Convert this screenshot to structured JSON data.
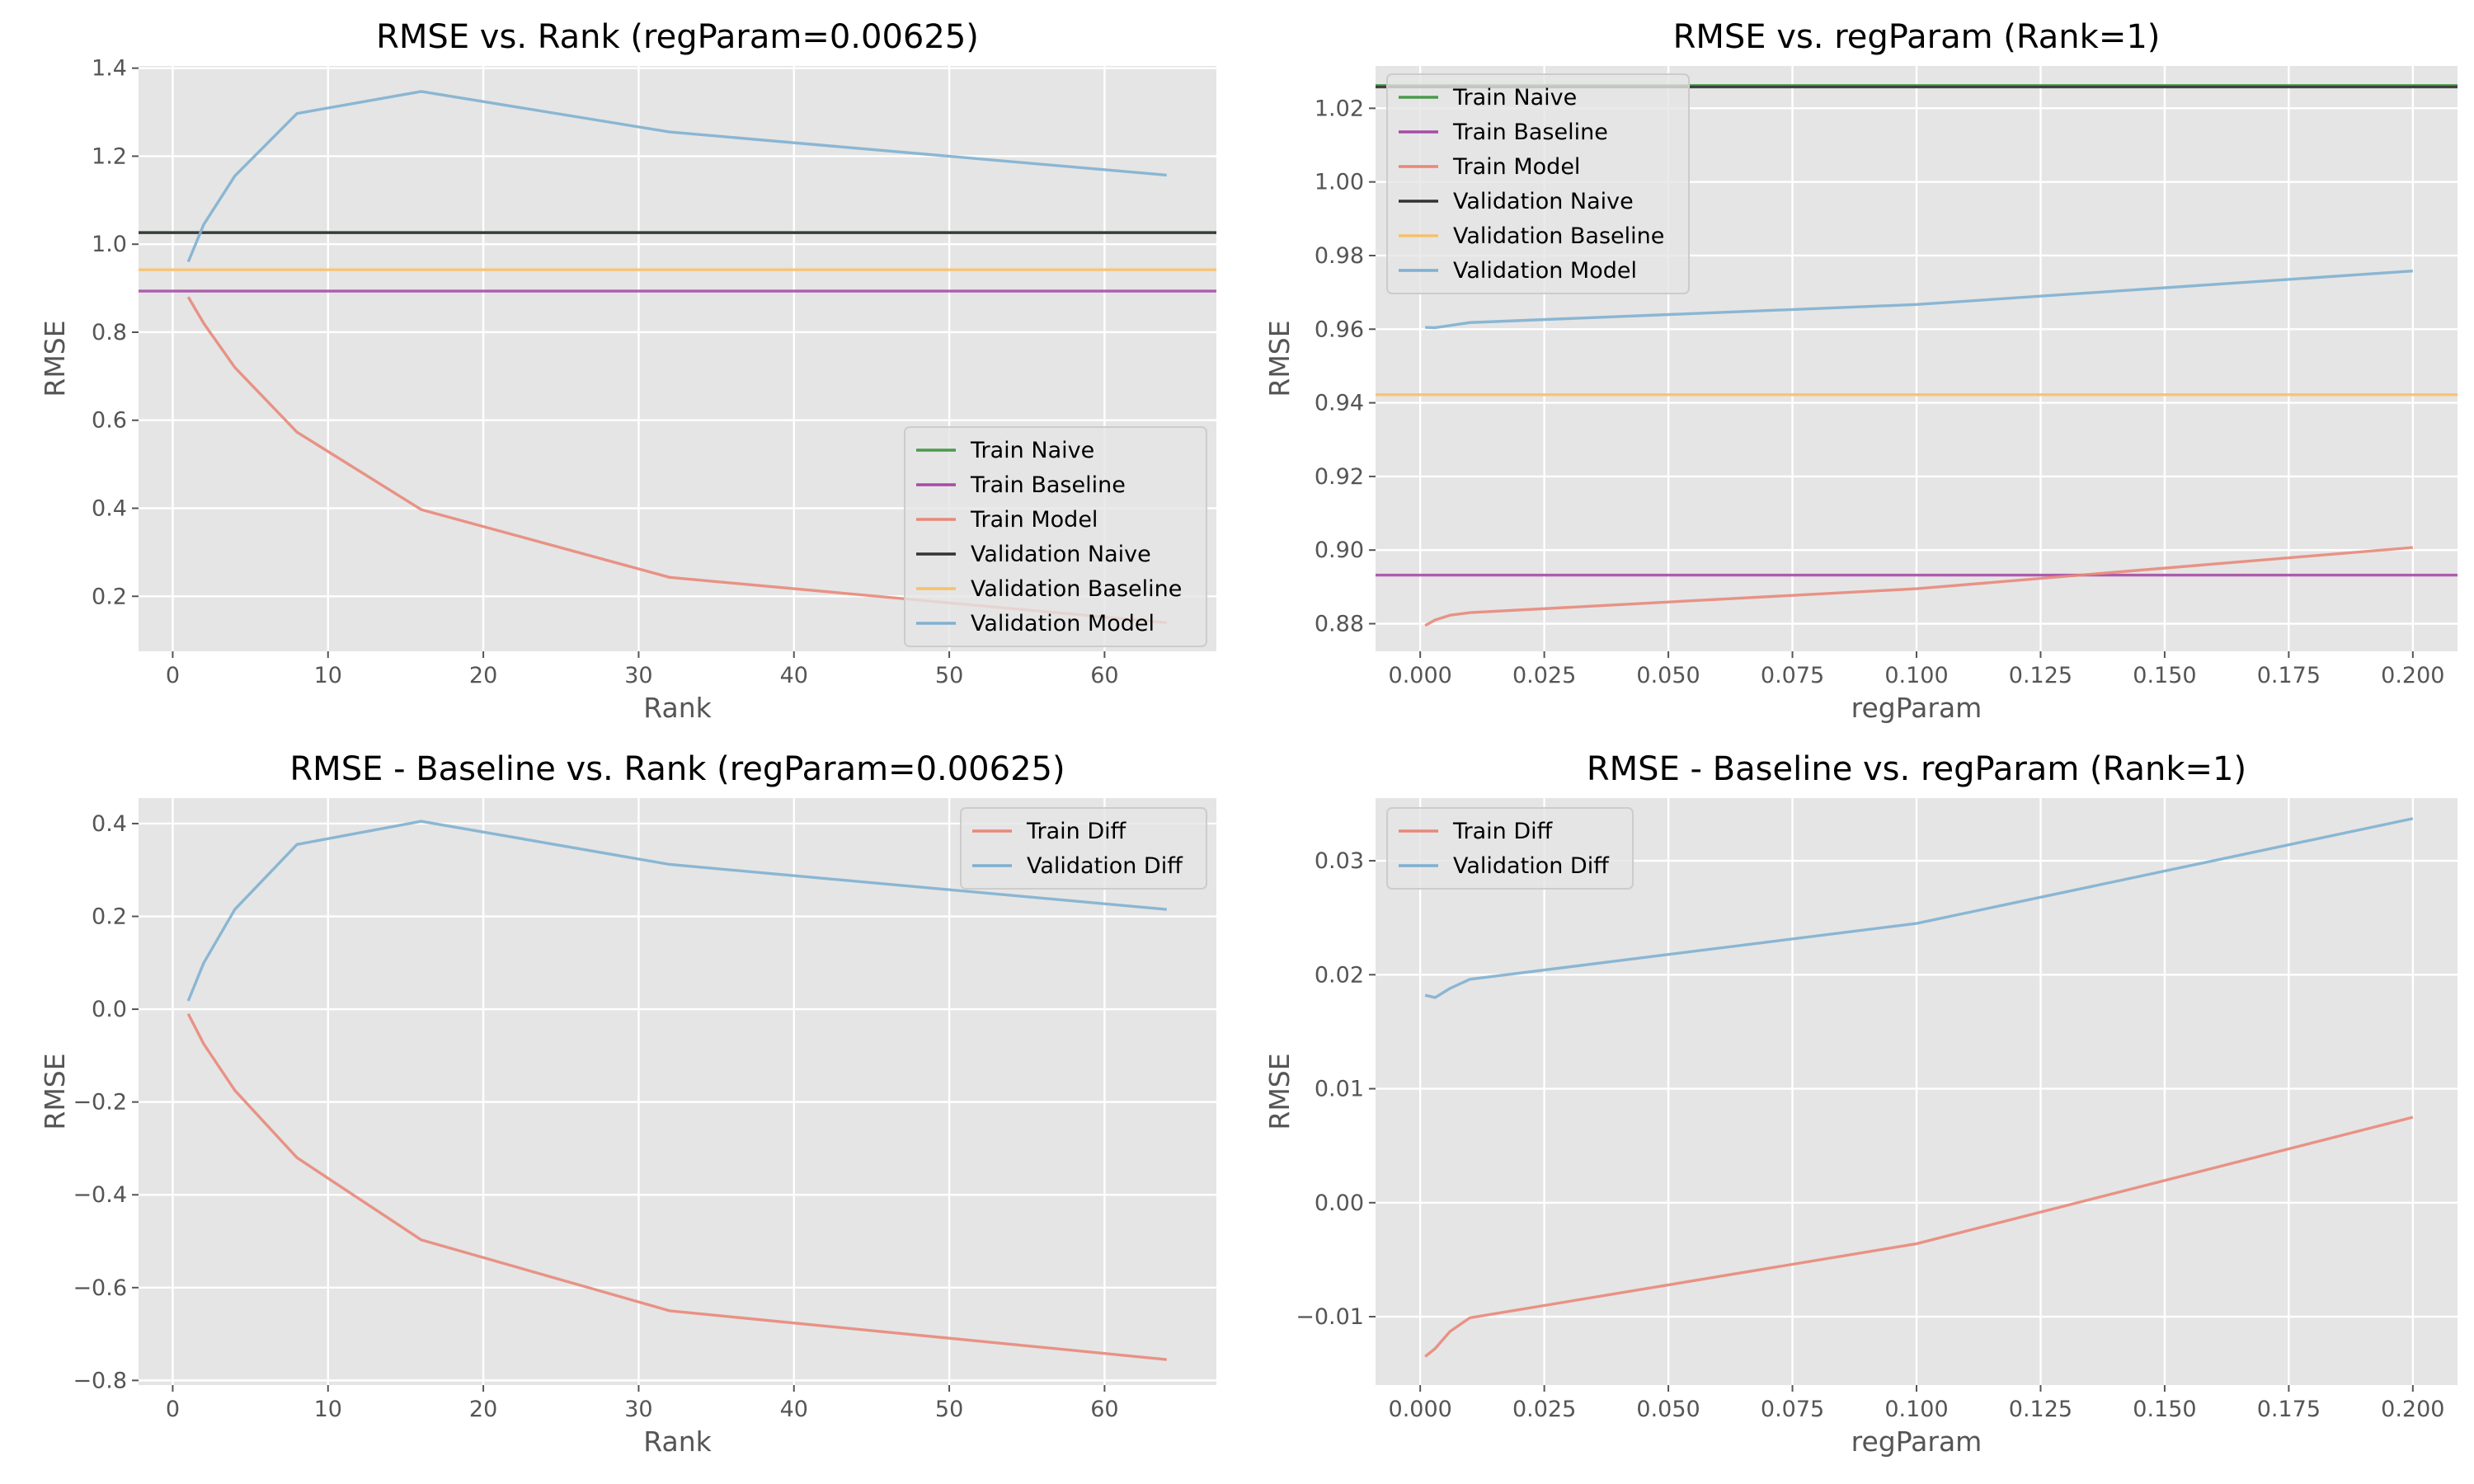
{
  "chart_data": [
    {
      "type": "line",
      "title": "RMSE vs. Rank (regParam=0.00625)",
      "xlabel": "Rank",
      "ylabel": "RMSE",
      "xlim": [
        -2.2,
        67.2
      ],
      "ylim": [
        0.075,
        1.405
      ],
      "xticks": [
        0,
        10,
        20,
        30,
        40,
        50,
        60
      ],
      "yticks": [
        0.2,
        0.4,
        0.6,
        0.8,
        1.0,
        1.2,
        1.4
      ],
      "ytick_decimals": 1,
      "grid": true,
      "legend": "lower-right",
      "series": [
        {
          "name": "Train Naive",
          "color": "#4c9a4c",
          "x": [
            -2.2,
            67.2
          ],
          "y": [
            1.026,
            1.026
          ]
        },
        {
          "name": "Train Baseline",
          "color": "#a64ca6",
          "x": [
            -2.2,
            67.2
          ],
          "y": [
            0.8935,
            0.8935
          ]
        },
        {
          "name": "Train Model",
          "color": "#e8887a",
          "x": [
            1,
            2,
            4,
            8,
            16,
            32,
            64
          ],
          "y": [
            0.88,
            0.82,
            0.72,
            0.573,
            0.397,
            0.243,
            0.14
          ]
        },
        {
          "name": "Validation Naive",
          "color": "#333333",
          "x": [
            -2.2,
            67.2
          ],
          "y": [
            1.0265,
            1.0265
          ]
        },
        {
          "name": "Validation Baseline",
          "color": "#f7c16b",
          "x": [
            -2.2,
            67.2
          ],
          "y": [
            0.942,
            0.942
          ]
        },
        {
          "name": "Validation Model",
          "color": "#7fb0d0",
          "x": [
            1,
            2,
            4,
            8,
            16,
            32,
            64
          ],
          "y": [
            0.96,
            1.045,
            1.155,
            1.297,
            1.347,
            1.255,
            1.157
          ]
        }
      ]
    },
    {
      "type": "line",
      "title": "RMSE vs. regParam (Rank=1)",
      "xlabel": "regParam",
      "ylabel": "RMSE",
      "xlim": [
        -0.009,
        0.209
      ],
      "ylim": [
        0.8725,
        1.0315
      ],
      "xticks": [
        0.0,
        0.025,
        0.05,
        0.075,
        0.1,
        0.125,
        0.15,
        0.175,
        0.2
      ],
      "yticks": [
        0.88,
        0.9,
        0.92,
        0.94,
        0.96,
        0.98,
        1.0,
        1.02
      ],
      "xtick_decimals": 3,
      "ytick_decimals": 2,
      "grid": true,
      "legend": "upper-left",
      "series": [
        {
          "name": "Train Naive",
          "color": "#4c9a4c",
          "x": [
            -0.009,
            0.209
          ],
          "y": [
            1.0262,
            1.0262
          ]
        },
        {
          "name": "Train Baseline",
          "color": "#a64ca6",
          "x": [
            -0.009,
            0.209
          ],
          "y": [
            0.8932,
            0.8932
          ]
        },
        {
          "name": "Train Model",
          "color": "#e8887a",
          "x": [
            0.001,
            0.003,
            0.006,
            0.01,
            0.1,
            0.2
          ],
          "y": [
            0.8795,
            0.881,
            0.8823,
            0.883,
            0.8895,
            0.9007
          ]
        },
        {
          "name": "Validation Naive",
          "color": "#333333",
          "x": [
            -0.009,
            0.209
          ],
          "y": [
            1.0258,
            1.0258
          ]
        },
        {
          "name": "Validation Baseline",
          "color": "#f7c16b",
          "x": [
            -0.009,
            0.209
          ],
          "y": [
            0.9422,
            0.9422
          ]
        },
        {
          "name": "Validation Model",
          "color": "#7fb0d0",
          "x": [
            0.001,
            0.003,
            0.006,
            0.01,
            0.1,
            0.2
          ],
          "y": [
            0.9605,
            0.9604,
            0.961,
            0.9618,
            0.9667,
            0.9758
          ]
        }
      ]
    },
    {
      "type": "line",
      "title": "RMSE - Baseline vs. Rank (regParam=0.00625)",
      "xlabel": "Rank",
      "ylabel": "RMSE",
      "xlim": [
        -2.2,
        67.2
      ],
      "ylim": [
        -0.81,
        0.455
      ],
      "xticks": [
        0,
        10,
        20,
        30,
        40,
        50,
        60
      ],
      "yticks": [
        -0.8,
        -0.6,
        -0.4,
        -0.2,
        0.0,
        0.2,
        0.4
      ],
      "ytick_decimals": 1,
      "grid": true,
      "legend": "upper-right",
      "series": [
        {
          "name": "Train Diff",
          "color": "#e8887a",
          "x": [
            1,
            2,
            4,
            8,
            16,
            32,
            64
          ],
          "y": [
            -0.01,
            -0.075,
            -0.175,
            -0.32,
            -0.497,
            -0.65,
            -0.755
          ]
        },
        {
          "name": "Validation Diff",
          "color": "#7fb0d0",
          "x": [
            1,
            2,
            4,
            8,
            16,
            32,
            64
          ],
          "y": [
            0.018,
            0.1,
            0.215,
            0.355,
            0.405,
            0.312,
            0.215
          ]
        }
      ]
    },
    {
      "type": "line",
      "title": "RMSE - Baseline vs. regParam (Rank=1)",
      "xlabel": "regParam",
      "ylabel": "RMSE",
      "xlim": [
        -0.009,
        0.209
      ],
      "ylim": [
        -0.016,
        0.0355
      ],
      "xticks": [
        0.0,
        0.025,
        0.05,
        0.075,
        0.1,
        0.125,
        0.15,
        0.175,
        0.2
      ],
      "yticks": [
        -0.01,
        0.0,
        0.01,
        0.02,
        0.03
      ],
      "xtick_decimals": 3,
      "ytick_decimals": 2,
      "grid": true,
      "legend": "upper-left",
      "series": [
        {
          "name": "Train Diff",
          "color": "#e8887a",
          "x": [
            0.001,
            0.003,
            0.006,
            0.01,
            0.1,
            0.2
          ],
          "y": [
            -0.0135,
            -0.0128,
            -0.0113,
            -0.0101,
            -0.0036,
            0.0075
          ]
        },
        {
          "name": "Validation Diff",
          "color": "#7fb0d0",
          "x": [
            0.001,
            0.003,
            0.006,
            0.01,
            0.1,
            0.2
          ],
          "y": [
            0.0182,
            0.018,
            0.0188,
            0.0196,
            0.0245,
            0.0337
          ]
        }
      ]
    }
  ]
}
